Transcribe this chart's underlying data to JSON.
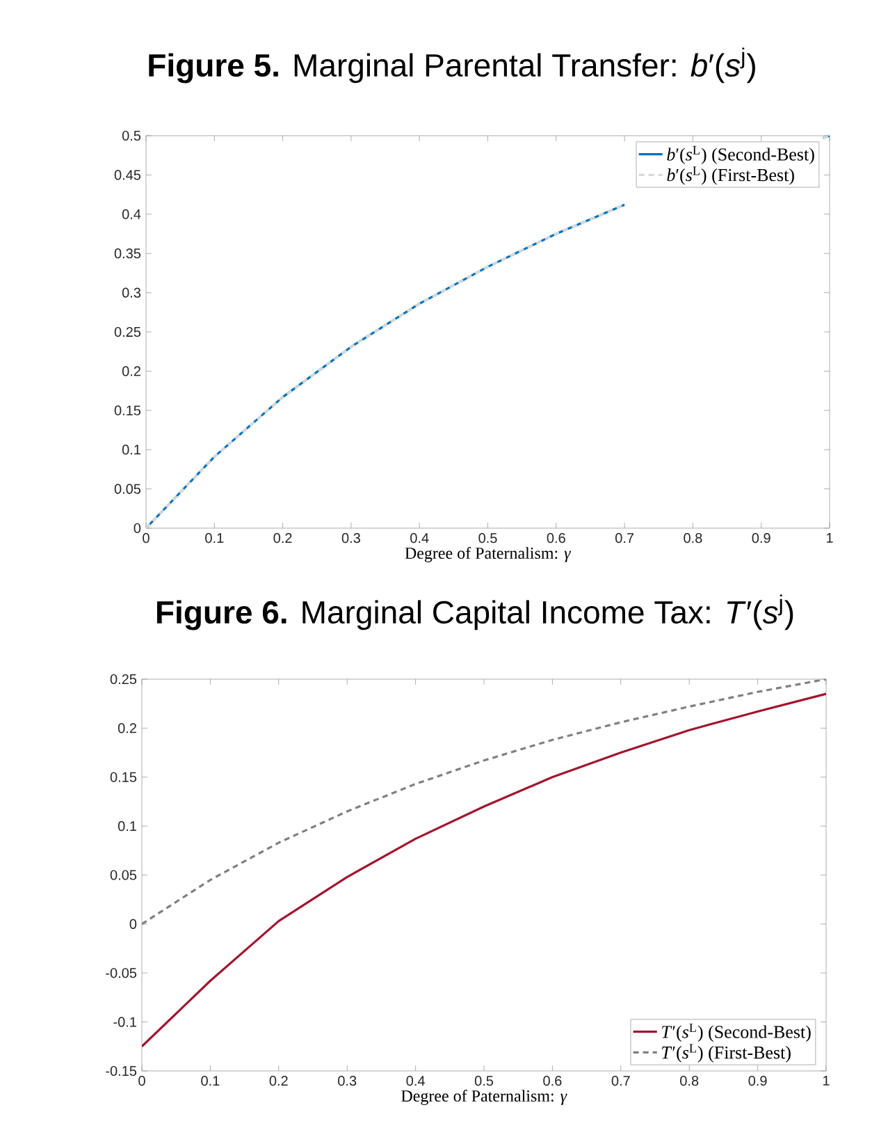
{
  "chart_data": [
    {
      "type": "line",
      "title": "**Figure 5.** Marginal Parental Transfer: *b*′(*s*$^{j}$)",
      "xlabel": "Degree of Paternalism: *γ*",
      "series": [
        {
          "name": "*b*′(*s*$^{L}$) (Second-Best)",
          "color": "#0072bd",
          "line_style": "solid",
          "x": [
            0,
            0.1,
            0.2,
            0.3,
            0.4,
            0.5,
            0.6,
            0.7,
            0.8,
            0.9,
            0.99,
            1
          ],
          "values": [
            0,
            0.091,
            0.167,
            0.231,
            0.286,
            0.333,
            0.375,
            0.412,
            null,
            null,
            0.497,
            0.5
          ]
        },
        {
          "name": "*b*′(*s*$^{L}$) (First-Best)",
          "color": "#d9d9d9",
          "line_style": "dashed",
          "x": [
            0,
            0.1,
            0.2,
            0.3,
            0.4,
            0.5,
            0.6,
            0.7,
            0.8,
            0.9,
            0.99,
            1
          ],
          "values": [
            0,
            0.091,
            0.167,
            0.231,
            0.286,
            0.333,
            0.375,
            0.412,
            null,
            null,
            0.497,
            0.5
          ]
        }
      ],
      "xlim": [
        0,
        1
      ],
      "ylim": [
        0,
        0.5
      ],
      "xticks": [
        0,
        0.1,
        0.2,
        0.3,
        0.4,
        0.5,
        0.6,
        0.7,
        0.8,
        0.9,
        1
      ],
      "yticks": [
        0,
        0.05,
        0.1,
        0.15,
        0.2,
        0.25,
        0.3,
        0.35,
        0.4,
        0.45,
        0.5
      ],
      "grid": false,
      "legend": "top right",
      "marker": "none"
    },
    {
      "type": "line",
      "title": "**Figure 6.** Marginal Capital Income Tax: *T*′(*s*$^{j}$)",
      "xlabel": "Degree of Paternalism: *γ*",
      "x": [
        0,
        0.1,
        0.2,
        0.3,
        0.4,
        0.5,
        0.6,
        0.7,
        0.8,
        0.9,
        1
      ],
      "series": [
        {
          "name": "*T*′(*s*$^{L}$) (Second-Best)",
          "color": "#a2142f",
          "line_style": "solid",
          "values": [
            -0.125,
            -0.058,
            0.003,
            0.048,
            0.087,
            0.12,
            0.15,
            0.175,
            0.198,
            0.217,
            0.235
          ]
        },
        {
          "name": "*T*′(*s*$^{L}$) (First-Best)",
          "color": "#808080",
          "line_style": "dashed",
          "values": [
            0,
            0.045,
            0.083,
            0.115,
            0.143,
            0.167,
            0.188,
            0.206,
            0.222,
            0.237,
            0.25
          ]
        }
      ],
      "xlim": [
        0,
        1
      ],
      "ylim": [
        -0.15,
        0.25
      ],
      "xticks": [
        0,
        0.1,
        0.2,
        0.3,
        0.4,
        0.5,
        0.6,
        0.7,
        0.8,
        0.9,
        1
      ],
      "yticks": [
        -0.15,
        -0.1,
        -0.05,
        0,
        0.05,
        0.1,
        0.15,
        0.2,
        0.25
      ],
      "grid": false,
      "legend": "bottom right",
      "marker": "none"
    }
  ]
}
